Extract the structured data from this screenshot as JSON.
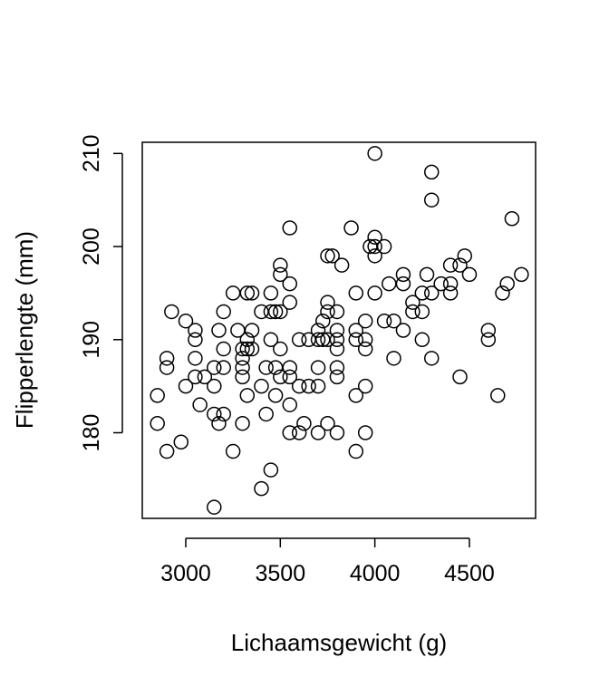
{
  "chart_data": {
    "type": "scatter",
    "title": "",
    "xlabel": "Lichaamsgewicht (g)",
    "ylabel": "Flipperlengte (mm)",
    "xlim": [
      2770,
      4850
    ],
    "ylim": [
      170.8,
      211.2
    ],
    "xticks": [
      3000,
      3500,
      4000,
      4500
    ],
    "yticks": [
      180,
      190,
      200,
      210
    ],
    "grid": false,
    "legend": "none",
    "marker": "open-circle",
    "color": "#000000",
    "points": [
      [
        2850,
        184
      ],
      [
        2850,
        181
      ],
      [
        2900,
        188
      ],
      [
        2900,
        187
      ],
      [
        2900,
        178
      ],
      [
        2925,
        193
      ],
      [
        2975,
        179
      ],
      [
        3000,
        192
      ],
      [
        3000,
        185
      ],
      [
        3050,
        191
      ],
      [
        3050,
        190
      ],
      [
        3050,
        188
      ],
      [
        3050,
        186
      ],
      [
        3075,
        183
      ],
      [
        3100,
        186
      ],
      [
        3150,
        187
      ],
      [
        3150,
        185
      ],
      [
        3150,
        182
      ],
      [
        3150,
        172
      ],
      [
        3175,
        191
      ],
      [
        3175,
        181
      ],
      [
        3200,
        193
      ],
      [
        3200,
        189
      ],
      [
        3200,
        187
      ],
      [
        3200,
        182
      ],
      [
        3250,
        195
      ],
      [
        3250,
        178
      ],
      [
        3275,
        191
      ],
      [
        3300,
        189
      ],
      [
        3300,
        188
      ],
      [
        3300,
        186
      ],
      [
        3300,
        187
      ],
      [
        3300,
        181
      ],
      [
        3325,
        195
      ],
      [
        3325,
        190
      ],
      [
        3325,
        189
      ],
      [
        3325,
        184
      ],
      [
        3350,
        195
      ],
      [
        3350,
        191
      ],
      [
        3350,
        189
      ],
      [
        3400,
        193
      ],
      [
        3400,
        185
      ],
      [
        3400,
        174
      ],
      [
        3425,
        187
      ],
      [
        3425,
        182
      ],
      [
        3450,
        195
      ],
      [
        3450,
        193
      ],
      [
        3450,
        190
      ],
      [
        3450,
        176
      ],
      [
        3475,
        193
      ],
      [
        3475,
        187
      ],
      [
        3475,
        184
      ],
      [
        3500,
        198
      ],
      [
        3500,
        197
      ],
      [
        3500,
        193
      ],
      [
        3500,
        189
      ],
      [
        3500,
        186
      ],
      [
        3550,
        202
      ],
      [
        3550,
        196
      ],
      [
        3550,
        194
      ],
      [
        3550,
        187
      ],
      [
        3550,
        186
      ],
      [
        3550,
        183
      ],
      [
        3550,
        180
      ],
      [
        3600,
        190
      ],
      [
        3600,
        185
      ],
      [
        3600,
        180
      ],
      [
        3625,
        181
      ],
      [
        3650,
        190
      ],
      [
        3650,
        185
      ],
      [
        3700,
        191
      ],
      [
        3700,
        190
      ],
      [
        3700,
        187
      ],
      [
        3700,
        185
      ],
      [
        3700,
        180
      ],
      [
        3725,
        192
      ],
      [
        3725,
        190
      ],
      [
        3750,
        199
      ],
      [
        3750,
        194
      ],
      [
        3750,
        193
      ],
      [
        3750,
        190
      ],
      [
        3750,
        181
      ],
      [
        3775,
        199
      ],
      [
        3800,
        193
      ],
      [
        3800,
        191
      ],
      [
        3800,
        190
      ],
      [
        3800,
        189
      ],
      [
        3800,
        187
      ],
      [
        3800,
        186
      ],
      [
        3800,
        180
      ],
      [
        3825,
        198
      ],
      [
        3875,
        202
      ],
      [
        3900,
        195
      ],
      [
        3900,
        191
      ],
      [
        3900,
        190
      ],
      [
        3900,
        184
      ],
      [
        3900,
        178
      ],
      [
        3950,
        192
      ],
      [
        3950,
        190
      ],
      [
        3950,
        189
      ],
      [
        3950,
        185
      ],
      [
        3950,
        180
      ],
      [
        3975,
        200
      ],
      [
        4000,
        210
      ],
      [
        4000,
        201
      ],
      [
        4000,
        200
      ],
      [
        4000,
        199
      ],
      [
        4000,
        195
      ],
      [
        4050,
        200
      ],
      [
        4050,
        192
      ],
      [
        4075,
        196
      ],
      [
        4100,
        192
      ],
      [
        4100,
        188
      ],
      [
        4150,
        197
      ],
      [
        4150,
        196
      ],
      [
        4150,
        191
      ],
      [
        4200,
        194
      ],
      [
        4200,
        193
      ],
      [
        4250,
        195
      ],
      [
        4250,
        193
      ],
      [
        4250,
        190
      ],
      [
        4275,
        197
      ],
      [
        4300,
        208
      ],
      [
        4300,
        205
      ],
      [
        4300,
        195
      ],
      [
        4300,
        188
      ],
      [
        4350,
        196
      ],
      [
        4400,
        198
      ],
      [
        4400,
        196
      ],
      [
        4400,
        195
      ],
      [
        4450,
        198
      ],
      [
        4450,
        186
      ],
      [
        4475,
        199
      ],
      [
        4500,
        197
      ],
      [
        4600,
        191
      ],
      [
        4600,
        190
      ],
      [
        4650,
        184
      ],
      [
        4675,
        195
      ],
      [
        4700,
        196
      ],
      [
        4725,
        203
      ],
      [
        4775,
        197
      ]
    ]
  }
}
